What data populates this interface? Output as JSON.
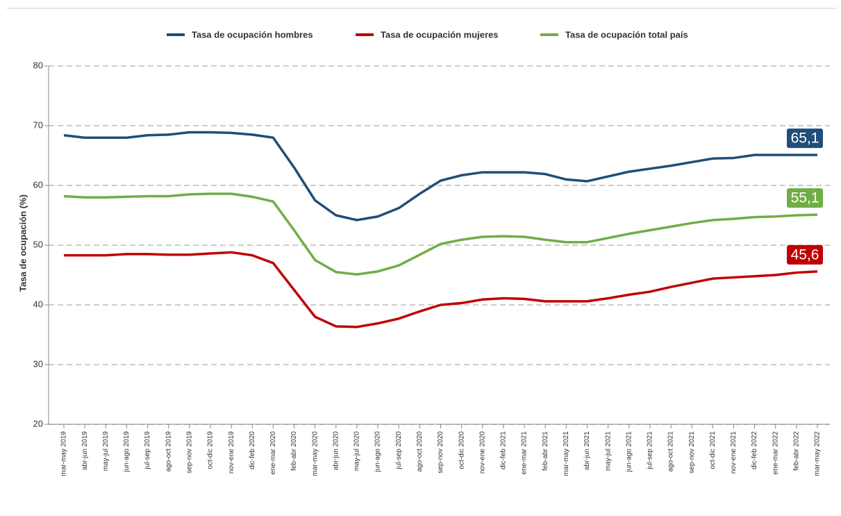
{
  "chart_data": {
    "type": "line",
    "y_label": "Tasa de ocupación (%)",
    "categories": [
      "mar-may 2019",
      "abr-jun 2019",
      "may-jul 2019",
      "jun-ago 2019",
      "jul-sep 2019",
      "ago-oct 2019",
      "sep-nov 2019",
      "oct-dic 2019",
      "nov-ene 2019",
      "dic-feb 2020",
      "ene-mar 2020",
      "feb-abr 2020",
      "mar-may 2020",
      "abr-jun 2020",
      "may-jul 2020",
      "jun-ago 2020",
      "jul-sep 2020",
      "ago-oct 2020",
      "sep-nov 2020",
      "oct-dic 2020",
      "nov-ene 2020",
      "dic-feb 2021",
      "ene-mar 2021",
      "feb-abr 2021",
      "mar-may 2021",
      "abr-jun 2021",
      "may-jul 2021",
      "jun-ago 2021",
      "jul-sep 2021",
      "ago-oct 2021",
      "sep-nov 2021",
      "oct-dic 2021",
      "nov-ene 2021",
      "dic-feb 2022",
      "ene-mar 2022",
      "feb-abr 2022",
      "mar-may 2022"
    ],
    "series": [
      {
        "name": "Tasa de ocupación hombres",
        "color": "#1f4e79",
        "values": [
          68.4,
          68.0,
          68.0,
          68.0,
          68.4,
          68.5,
          68.9,
          68.9,
          68.8,
          68.5,
          68.0,
          63.0,
          57.5,
          55.0,
          54.2,
          54.8,
          56.2,
          58.6,
          60.8,
          61.7,
          62.2,
          62.2,
          62.2,
          61.9,
          61.0,
          60.7,
          61.5,
          62.3,
          62.8,
          63.3,
          63.9,
          64.5,
          64.6,
          65.1,
          65.1,
          65.1,
          65.1
        ],
        "value_labels": [
          null,
          null,
          null,
          null,
          null,
          null,
          null,
          null,
          null,
          null,
          null,
          null,
          null,
          null,
          null,
          null,
          null,
          null,
          null,
          null,
          null,
          null,
          null,
          null,
          null,
          null,
          null,
          null,
          null,
          null,
          null,
          null,
          null,
          null,
          null,
          null,
          "65,1"
        ]
      },
      {
        "name": "Tasa de ocupación mujeres",
        "color": "#c00000",
        "values": [
          48.3,
          48.3,
          48.3,
          48.5,
          48.5,
          48.4,
          48.4,
          48.6,
          48.8,
          48.3,
          47.0,
          42.5,
          38.0,
          36.4,
          36.3,
          36.9,
          37.7,
          38.9,
          40.0,
          40.3,
          40.9,
          41.1,
          41.0,
          40.6,
          40.6,
          40.6,
          41.1,
          41.7,
          42.2,
          43.0,
          43.7,
          44.4,
          44.6,
          44.8,
          45.0,
          45.4,
          45.6
        ],
        "value_labels": [
          null,
          null,
          null,
          null,
          null,
          null,
          null,
          null,
          null,
          null,
          null,
          null,
          null,
          null,
          null,
          null,
          null,
          null,
          null,
          null,
          null,
          null,
          null,
          null,
          null,
          null,
          null,
          null,
          null,
          null,
          null,
          null,
          null,
          null,
          null,
          null,
          "45,6"
        ]
      },
      {
        "name": "Tasa de ocupación total país",
        "color": "#70ad47",
        "values": [
          58.2,
          58.0,
          58.0,
          58.1,
          58.2,
          58.2,
          58.5,
          58.6,
          58.6,
          58.1,
          57.3,
          52.5,
          47.5,
          45.5,
          45.1,
          45.6,
          46.6,
          48.4,
          50.2,
          50.9,
          51.4,
          51.5,
          51.4,
          50.9,
          50.5,
          50.5,
          51.2,
          51.9,
          52.5,
          53.1,
          53.7,
          54.2,
          54.4,
          54.7,
          54.8,
          55.0,
          55.1
        ],
        "value_labels": [
          null,
          null,
          null,
          null,
          null,
          null,
          null,
          null,
          null,
          null,
          null,
          null,
          null,
          null,
          null,
          null,
          null,
          null,
          null,
          null,
          null,
          null,
          null,
          null,
          null,
          null,
          null,
          null,
          null,
          null,
          null,
          null,
          null,
          null,
          null,
          null,
          "55,1"
        ]
      }
    ],
    "ylim": [
      20,
      80
    ],
    "yticks": [
      20,
      30,
      40,
      50,
      60,
      70,
      80
    ],
    "grid": true,
    "legend": "top"
  }
}
